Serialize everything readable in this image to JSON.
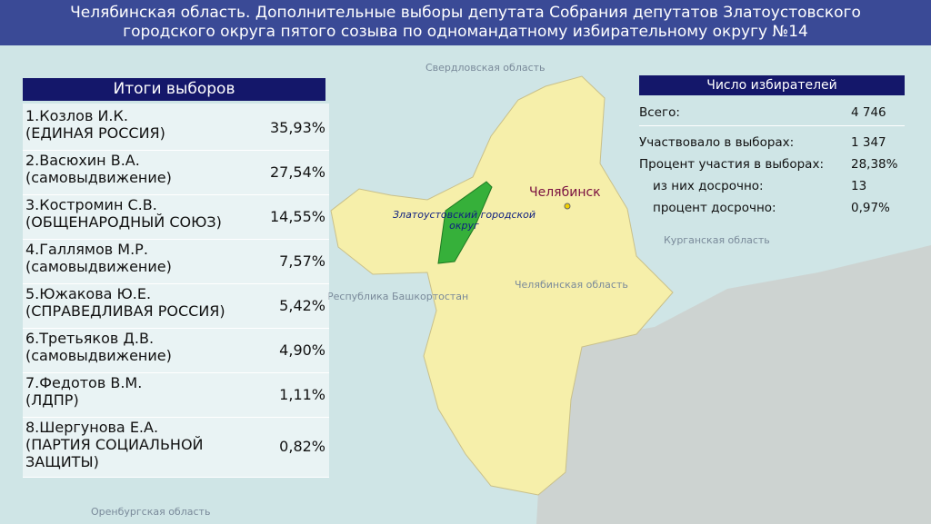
{
  "header": {
    "title": "Челябинская область. Дополнительные выборы депутата Собрания депутатов Златоустовского городского округа пятого созыва по одномандатному избирательному округу №14"
  },
  "results": {
    "title": "Итоги выборов",
    "rows": [
      {
        "name": [
          "1.Козлов И.К.",
          "(ЕДИНАЯ РОССИЯ)"
        ],
        "percent": "35,93%"
      },
      {
        "name": [
          "2.Васюхин В.А.",
          "(самовыдвижение)"
        ],
        "percent": "27,54%"
      },
      {
        "name": [
          "3.Костромин С.В.",
          "(ОБЩЕНАРОДНЫЙ СОЮЗ)"
        ],
        "percent": "14,55%"
      },
      {
        "name": [
          "4.Галлямов М.Р.",
          "(самовыдвижение)"
        ],
        "percent": "7,57%"
      },
      {
        "name": [
          "5.Южакова Ю.Е.",
          "(СПРАВЕДЛИВАЯ РОССИЯ)"
        ],
        "percent": "5,42%"
      },
      {
        "name": [
          "6.Третьяков Д.В.",
          "(самовыдвижение)"
        ],
        "percent": "4,90%"
      },
      {
        "name": [
          "7.Федотов В.М.",
          "(ЛДПР)"
        ],
        "percent": "1,11%"
      },
      {
        "name": [
          "8.Шергунова Е.А.",
          "(ПАРТИЯ СОЦИАЛЬНОЙ",
          "ЗАЩИТЫ)"
        ],
        "percent": "0,82%"
      }
    ]
  },
  "voters": {
    "title": "Число избирателей",
    "rows": [
      {
        "label": "Всего:",
        "value": "4 746"
      },
      {
        "label": "Участвовало в выборах:",
        "value": "1 347"
      },
      {
        "label": "Процент участия в выборах:",
        "value": "28,38%"
      },
      {
        "label": "из них досрочно:",
        "value": "13"
      },
      {
        "label": "процент досрочно:",
        "value": "0,97%"
      }
    ]
  },
  "map": {
    "labels": [
      "Свердловская область",
      "Курганская область",
      "Челябинская область",
      "Республика Башкортостан",
      "Оренбургская область",
      "Челябинск",
      "Златоустовский городской округ"
    ]
  }
}
